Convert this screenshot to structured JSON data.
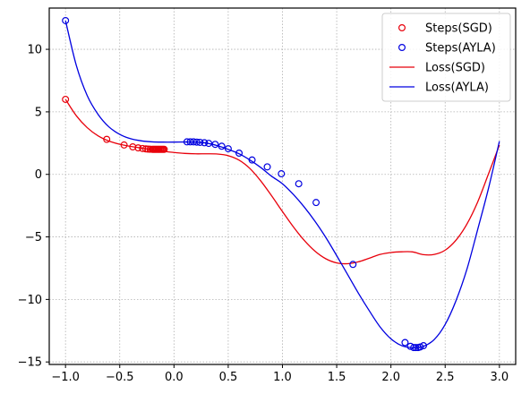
{
  "chart_data": {
    "type": "line",
    "title": "",
    "xlabel": "",
    "ylabel": "",
    "xlim": [
      -1.15,
      3.15
    ],
    "ylim": [
      -15.2,
      13.3
    ],
    "grid": true,
    "legend_placement": "top-right",
    "x_ticks": [
      -1.0,
      -0.5,
      0.0,
      0.5,
      1.0,
      1.5,
      2.0,
      2.5,
      3.0
    ],
    "x_tick_labels": [
      "−1.0",
      "−0.5",
      "0.0",
      "0.5",
      "1.0",
      "1.5",
      "2.0",
      "2.5",
      "3.0"
    ],
    "y_ticks": [
      -15,
      -10,
      -5,
      0,
      5,
      10
    ],
    "y_tick_labels": [
      "−15",
      "−10",
      "−5",
      "0",
      "5",
      "10"
    ],
    "series": [
      {
        "name": "Loss(SGD)",
        "kind": "line",
        "color": "#e8000b",
        "x": [
          -1.0,
          -0.9,
          -0.8,
          -0.7,
          -0.6,
          -0.5,
          -0.4,
          -0.3,
          -0.2,
          -0.1,
          0.0,
          0.1,
          0.2,
          0.3,
          0.4,
          0.5,
          0.6,
          0.7,
          0.8,
          0.9,
          1.0,
          1.1,
          1.2,
          1.3,
          1.4,
          1.5,
          1.6,
          1.7,
          1.8,
          1.9,
          2.0,
          2.1,
          2.2,
          2.3,
          2.4,
          2.5,
          2.6,
          2.7,
          2.8,
          2.9,
          3.0
        ],
        "y": [
          6.0,
          4.685,
          3.735,
          3.084,
          2.665,
          2.406,
          2.239,
          2.103,
          1.974,
          1.853,
          1.75,
          1.676,
          1.644,
          1.645,
          1.628,
          1.497,
          1.138,
          0.467,
          -0.527,
          -1.714,
          -2.973,
          -4.191,
          -5.272,
          -6.142,
          -6.75,
          -7.079,
          -7.144,
          -6.993,
          -6.706,
          -6.405,
          -6.25,
          -6.19,
          -6.2,
          -6.42,
          -6.4,
          -6.06,
          -5.26,
          -3.98,
          -2.2,
          0.05,
          2.35
        ]
      },
      {
        "name": "Loss(AYLA)",
        "kind": "line",
        "color": "#0000e0",
        "x": [
          -1.0,
          -0.9,
          -0.8,
          -0.7,
          -0.6,
          -0.5,
          -0.4,
          -0.3,
          -0.2,
          -0.1,
          0.0,
          0.1,
          0.2,
          0.3,
          0.4,
          0.5,
          0.6,
          0.7,
          0.8,
          0.9,
          1.0,
          1.1,
          1.2,
          1.3,
          1.4,
          1.5,
          1.6,
          1.7,
          1.8,
          1.9,
          2.0,
          2.1,
          2.2,
          2.3,
          2.4,
          2.5,
          2.6,
          2.7,
          2.8,
          2.9,
          3.0
        ],
        "y": [
          12.3,
          8.7,
          6.3,
          4.8,
          3.8,
          3.2,
          2.85,
          2.68,
          2.6,
          2.58,
          2.58,
          2.59,
          2.58,
          2.5,
          2.3,
          2.0,
          1.65,
          1.15,
          0.55,
          -0.15,
          -0.75,
          -1.6,
          -2.6,
          -3.75,
          -5.05,
          -6.5,
          -8.0,
          -9.5,
          -10.9,
          -12.2,
          -13.15,
          -13.7,
          -13.85,
          -13.75,
          -13.2,
          -12.0,
          -10.1,
          -7.6,
          -4.4,
          -1.1,
          2.65
        ]
      },
      {
        "name": "Steps(SGD)",
        "kind": "scatter",
        "color": "#e8000b",
        "x": [
          -1.0,
          -0.62,
          -0.46,
          -0.38,
          -0.33,
          -0.29,
          -0.26,
          -0.24,
          -0.22,
          -0.2,
          -0.19,
          -0.18,
          -0.17,
          -0.16,
          -0.15,
          -0.14,
          -0.13,
          -0.12,
          -0.11,
          -0.1,
          -0.09
        ],
        "y": [
          6.0,
          2.8,
          2.35,
          2.2,
          2.12,
          2.07,
          2.04,
          2.02,
          2.01,
          2.0,
          2.0,
          2.0,
          2.0,
          2.0,
          2.0,
          2.0,
          2.0,
          2.0,
          2.0,
          2.0,
          2.0
        ]
      },
      {
        "name": "Steps(AYLA)",
        "kind": "scatter",
        "color": "#0000e0",
        "x": [
          -1.0,
          0.12,
          0.15,
          0.18,
          0.21,
          0.24,
          0.28,
          0.32,
          0.38,
          0.44,
          0.5,
          0.6,
          0.72,
          0.86,
          0.99,
          1.15,
          1.31,
          1.65,
          2.13,
          2.18,
          2.21,
          2.23,
          2.25,
          2.27,
          2.3
        ],
        "y": [
          12.3,
          2.6,
          2.6,
          2.6,
          2.58,
          2.56,
          2.53,
          2.48,
          2.4,
          2.25,
          2.05,
          1.7,
          1.15,
          0.6,
          0.05,
          -0.75,
          -2.25,
          -7.2,
          -13.45,
          -13.75,
          -13.85,
          -13.85,
          -13.85,
          -13.8,
          -13.7
        ]
      }
    ],
    "legend": [
      "Steps(SGD)",
      "Steps(AYLA)",
      "Loss(SGD)",
      "Loss(AYLA)"
    ]
  }
}
